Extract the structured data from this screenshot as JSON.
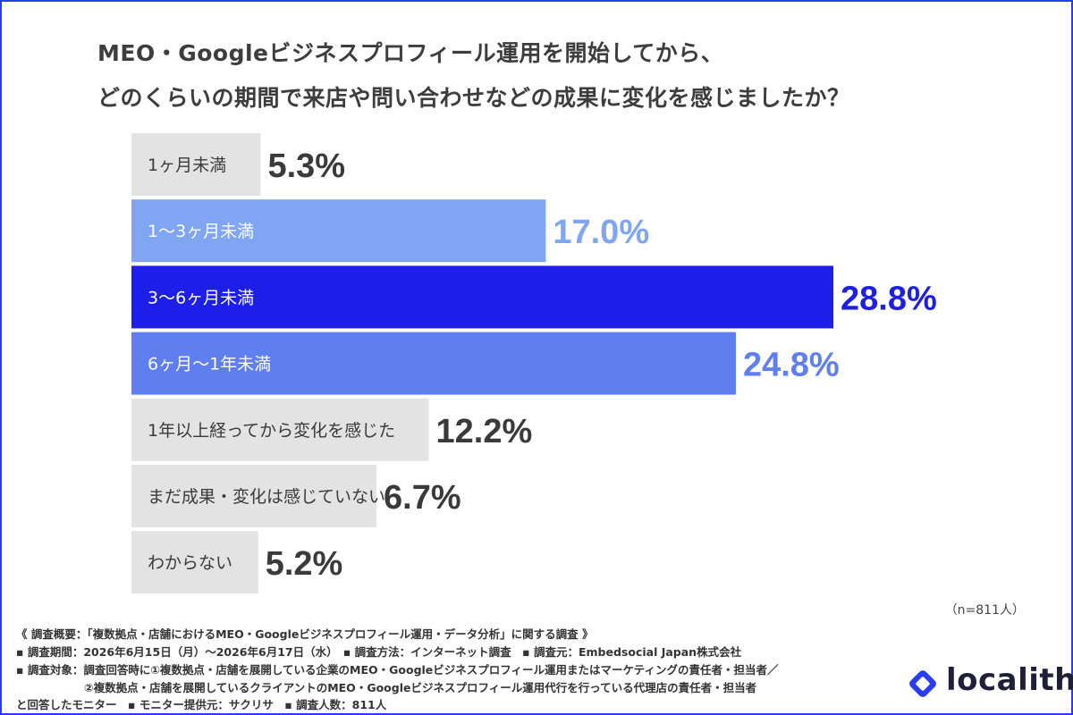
{
  "title_line1": "MEO・Googleビジネスプロフィール運用を開始してから、",
  "title_line2": "どのくらいの期間で来店や問い合わせなどの成果に変化を感じましたか？",
  "chart_data": {
    "type": "bar",
    "orientation": "horizontal",
    "categories": [
      "1ヶ月未満",
      "1〜3ヶ月未満",
      "3〜6ヶ月未満",
      "6ヶ月〜1年未満",
      "1年以上経ってから変化を感じた",
      "まだ成果・変化は感じていない",
      "わからない"
    ],
    "values": [
      5.3,
      17.0,
      28.8,
      24.8,
      12.2,
      6.7,
      5.2
    ],
    "value_labels": [
      "5.3%",
      "17.0%",
      "28.8%",
      "24.8%",
      "12.2%",
      "6.7%",
      "5.2%"
    ],
    "bar_colors": [
      "#e3e3e3",
      "#7fa5f3",
      "#1d1ee8",
      "#5f7ef0",
      "#e3e3e3",
      "#e3e3e3",
      "#e3e3e3"
    ],
    "label_colors": [
      "#3a3a3a",
      "#ffffff",
      "#ffffff",
      "#ffffff",
      "#3a3a3a",
      "#3a3a3a",
      "#3a3a3a"
    ],
    "value_colors": [
      "#3a3a3a",
      "#7fa5f3",
      "#1d1ee8",
      "#5f7ef0",
      "#3a3a3a",
      "#3a3a3a",
      "#3a3a3a"
    ],
    "xlim": [
      0,
      28.8
    ]
  },
  "sample_size": "（n=811人）",
  "footnotes": {
    "line1": "《 調査概要：「複数拠点・店舗におけるMEO・Googleビジネスプロフィール運用・データ分析」に関する調査 》",
    "line2": "▪ 調査期間：2026年6月15日（月）〜2026年6月17日（水）　▪ 調査方法：インターネット調査　▪ 調査元：Embedsocial Japan株式会社",
    "line3": "▪ 調査対象：調査回答時に①複数拠点・店舗を展開している企業のMEO・Googleビジネスプロフィール運用またはマーケティングの責任者・担当者／",
    "line4": "②複数拠点・店舗を展開しているクライアントのMEO・Googleビジネスプロフィール運用代行を行っている代理店の責任者・担当者",
    "line5": "と回答したモニター　▪ モニター提供元：サクリサ　▪ 調査人数：811人"
  },
  "logo": {
    "text": "localith",
    "icon": "diamond-logo-icon",
    "color": "#2a3cf2"
  }
}
